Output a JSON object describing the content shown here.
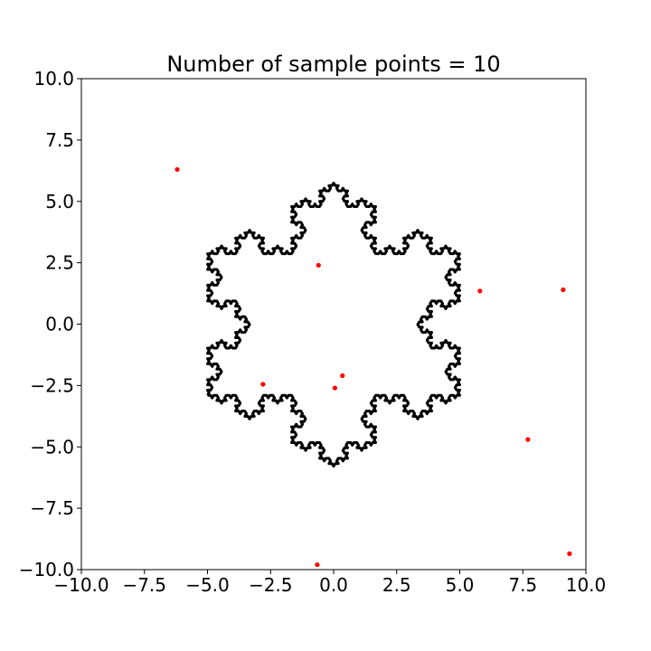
{
  "chart_data": {
    "type": "scatter",
    "title": "Number of sample points = 10",
    "xlabel": "",
    "ylabel": "",
    "xlim": [
      -10,
      10
    ],
    "ylim": [
      -10,
      10
    ],
    "grid": false,
    "xticks": [
      "−10.0",
      "−7.5",
      "−5.0",
      "−2.5",
      "0.0",
      "2.5",
      "5.0",
      "7.5",
      "10.0"
    ],
    "yticks": [
      "10.0",
      "7.5",
      "5.0",
      "2.5",
      "0.0",
      "−2.5",
      "−5.0",
      "−7.5",
      "−10.0"
    ],
    "xtick_values": [
      -10,
      -7.5,
      -5,
      -2.5,
      0,
      2.5,
      5,
      7.5,
      10
    ],
    "ytick_values": [
      10,
      7.5,
      5,
      2.5,
      0,
      -2.5,
      -5,
      -7.5,
      -10
    ],
    "curve": {
      "shape": "koch-snowflake-boundary",
      "color": "#000000",
      "level": 4,
      "vertices": [
        [
          -5.0,
          -2.9
        ],
        [
          0.0,
          5.75
        ],
        [
          5.0,
          -2.9
        ]
      ]
    },
    "series": [
      {
        "color": "#ff0000",
        "points": [
          [
            -6.2,
            6.3
          ],
          [
            -0.6,
            2.4
          ],
          [
            5.8,
            1.35
          ],
          [
            9.1,
            1.4
          ],
          [
            -2.8,
            -2.45
          ],
          [
            0.35,
            -2.1
          ],
          [
            0.05,
            -2.6
          ],
          [
            7.7,
            -4.7
          ],
          [
            -0.65,
            -9.8
          ],
          [
            9.35,
            -9.35
          ]
        ]
      }
    ]
  }
}
